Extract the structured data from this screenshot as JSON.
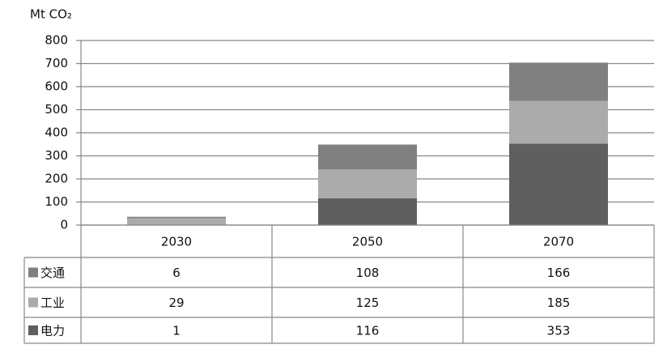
{
  "chart_data": {
    "type": "stacked_bar",
    "y_label": "Mt CO₂",
    "categories": [
      "2030",
      "2050",
      "2070"
    ],
    "series": [
      {
        "name": "交通",
        "color": "#808080",
        "values": [
          6,
          108,
          166
        ]
      },
      {
        "name": "工业",
        "color": "#ababab",
        "values": [
          29,
          125,
          185
        ]
      },
      {
        "name": "电力",
        "color": "#5f5f5f",
        "values": [
          1,
          116,
          353
        ]
      }
    ],
    "ylim": [
      0,
      800
    ],
    "yticks": [
      0,
      100,
      200,
      300,
      400,
      500,
      600,
      700,
      800
    ],
    "grid": true
  }
}
